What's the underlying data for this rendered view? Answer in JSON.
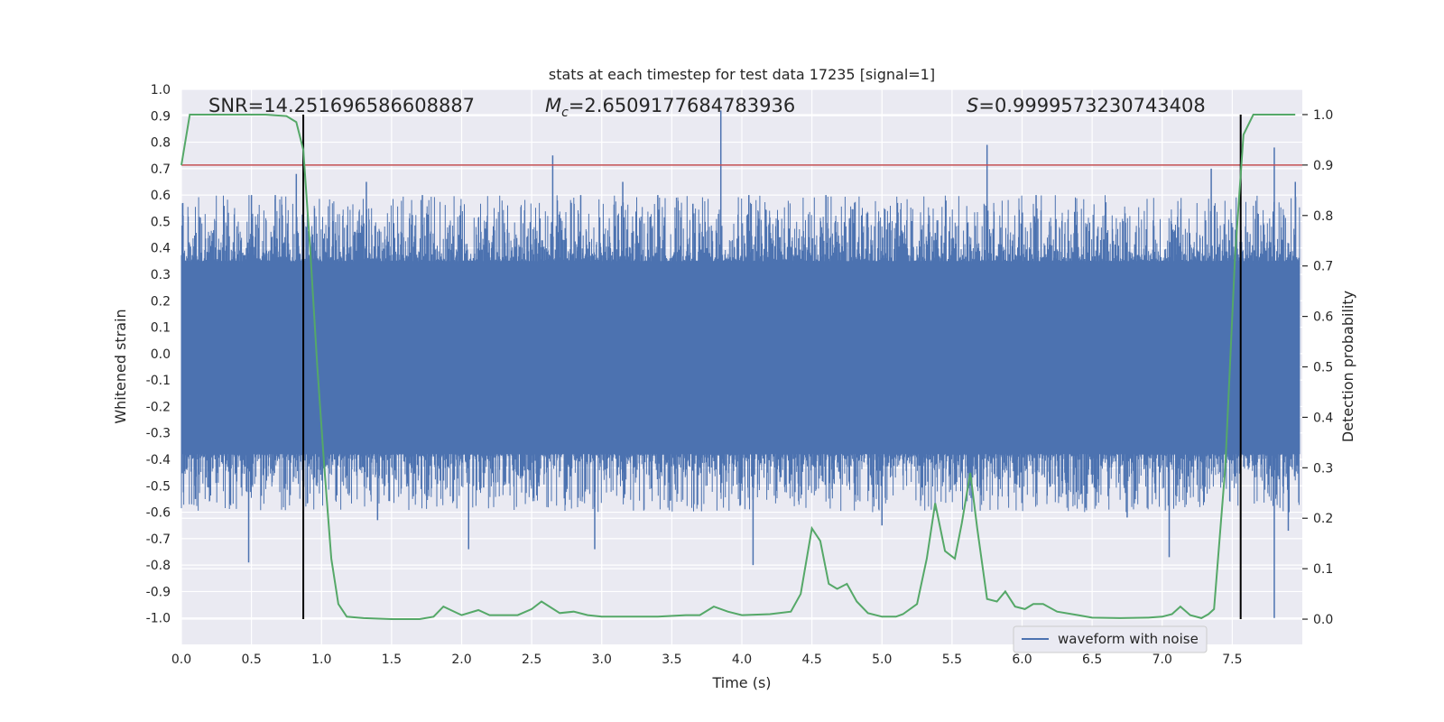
{
  "chart_data": {
    "type": "line",
    "title": "stats at each timestep for test data 17235 [signal=1]",
    "xlabel": "Time (s)",
    "ylabel": "Whitened strain",
    "y2label": "Detection probability",
    "xlim": [
      0.0,
      8.0
    ],
    "ylim": [
      -1.1,
      1.0
    ],
    "y2lim": [
      -0.05,
      1.05
    ],
    "xticks": [
      "0.0",
      "0.5",
      "1.0",
      "1.5",
      "2.0",
      "2.5",
      "3.0",
      "3.5",
      "4.0",
      "4.5",
      "5.0",
      "5.5",
      "6.0",
      "6.5",
      "7.0",
      "7.5"
    ],
    "yticks": [
      "1.0",
      "0.9",
      "0.8",
      "0.7",
      "0.6",
      "0.5",
      "0.4",
      "0.3",
      "0.2",
      "0.1",
      "0.0",
      "-0.1",
      "-0.2",
      "-0.3",
      "-0.4",
      "-0.5",
      "-0.6",
      "-0.7",
      "-0.8",
      "-0.9",
      "-1.0"
    ],
    "y2ticks": [
      "1.0",
      "0.9",
      "0.8",
      "0.7",
      "0.6",
      "0.5",
      "0.4",
      "0.3",
      "0.2",
      "0.1",
      "0.0"
    ],
    "annotations": {
      "snr": "SNR=14.251696586608887",
      "mc_symbol": "M",
      "mc_sub": "c",
      "mc_value": "=2.6509177684783936",
      "s_symbol": "S",
      "s_value": "=0.9999573230743408"
    },
    "threshold": 0.9,
    "vlines": [
      0.87,
      7.56
    ],
    "legend": {
      "label": "waveform with noise",
      "location": "lower-right"
    },
    "series": [
      {
        "name": "waveform with noise",
        "color": "#4c72b0",
        "band_upper": 0.35,
        "band_lower": -0.38,
        "spikes": [
          [
            0.01,
            0.57
          ],
          [
            0.5,
            0.6
          ],
          [
            0.67,
            0.6
          ],
          [
            0.82,
            0.68
          ],
          [
            1.32,
            0.65
          ],
          [
            1.72,
            0.6
          ],
          [
            2.65,
            0.75
          ],
          [
            2.85,
            0.6
          ],
          [
            3.15,
            0.65
          ],
          [
            3.4,
            0.6
          ],
          [
            3.85,
            0.92
          ],
          [
            4.05,
            0.6
          ],
          [
            4.6,
            0.6
          ],
          [
            5.75,
            0.79
          ],
          [
            6.1,
            0.6
          ],
          [
            7.35,
            0.7
          ],
          [
            7.8,
            0.78
          ],
          [
            7.95,
            0.65
          ],
          [
            0.48,
            -0.79
          ],
          [
            2.05,
            -0.74
          ],
          [
            2.95,
            -0.74
          ],
          [
            4.08,
            -0.8
          ],
          [
            7.05,
            -0.77
          ],
          [
            7.8,
            -1.0
          ],
          [
            6.75,
            -0.62
          ],
          [
            5.0,
            -0.65
          ],
          [
            1.4,
            -0.63
          ],
          [
            0.1,
            -0.55
          ],
          [
            7.9,
            -0.67
          ]
        ]
      },
      {
        "name": "detection probability",
        "color": "#55a868",
        "x": [
          0.0,
          0.06,
          0.2,
          0.4,
          0.6,
          0.75,
          0.82,
          0.87,
          0.92,
          0.97,
          1.02,
          1.07,
          1.12,
          1.18,
          1.3,
          1.5,
          1.7,
          1.8,
          1.87,
          2.0,
          2.12,
          2.2,
          2.4,
          2.5,
          2.57,
          2.7,
          2.8,
          2.9,
          3.0,
          3.2,
          3.4,
          3.6,
          3.7,
          3.8,
          3.9,
          4.0,
          4.2,
          4.35,
          4.42,
          4.5,
          4.56,
          4.62,
          4.68,
          4.75,
          4.82,
          4.9,
          5.0,
          5.1,
          5.15,
          5.25,
          5.32,
          5.38,
          5.45,
          5.52,
          5.57,
          5.63,
          5.68,
          5.75,
          5.82,
          5.88,
          5.95,
          6.02,
          6.08,
          6.15,
          6.25,
          6.4,
          6.5,
          6.7,
          6.9,
          7.0,
          7.07,
          7.13,
          7.2,
          7.28,
          7.33,
          7.37,
          7.45,
          7.52,
          7.58,
          7.65,
          7.7,
          7.8,
          7.95
        ],
        "y": [
          0.9,
          1.0,
          1.0,
          1.0,
          1.0,
          0.997,
          0.985,
          0.93,
          0.73,
          0.5,
          0.3,
          0.12,
          0.03,
          0.005,
          0.002,
          0.0,
          0.0,
          0.005,
          0.025,
          0.008,
          0.018,
          0.008,
          0.008,
          0.02,
          0.035,
          0.012,
          0.015,
          0.008,
          0.005,
          0.005,
          0.005,
          0.008,
          0.008,
          0.025,
          0.015,
          0.008,
          0.01,
          0.015,
          0.05,
          0.18,
          0.155,
          0.07,
          0.06,
          0.07,
          0.035,
          0.012,
          0.005,
          0.005,
          0.01,
          0.03,
          0.12,
          0.23,
          0.135,
          0.12,
          0.19,
          0.29,
          0.18,
          0.04,
          0.035,
          0.055,
          0.025,
          0.02,
          0.03,
          0.03,
          0.015,
          0.008,
          0.003,
          0.002,
          0.003,
          0.005,
          0.01,
          0.025,
          0.008,
          0.002,
          0.01,
          0.02,
          0.3,
          0.72,
          0.96,
          1.0,
          1.0,
          1.0,
          1.0
        ]
      }
    ]
  }
}
